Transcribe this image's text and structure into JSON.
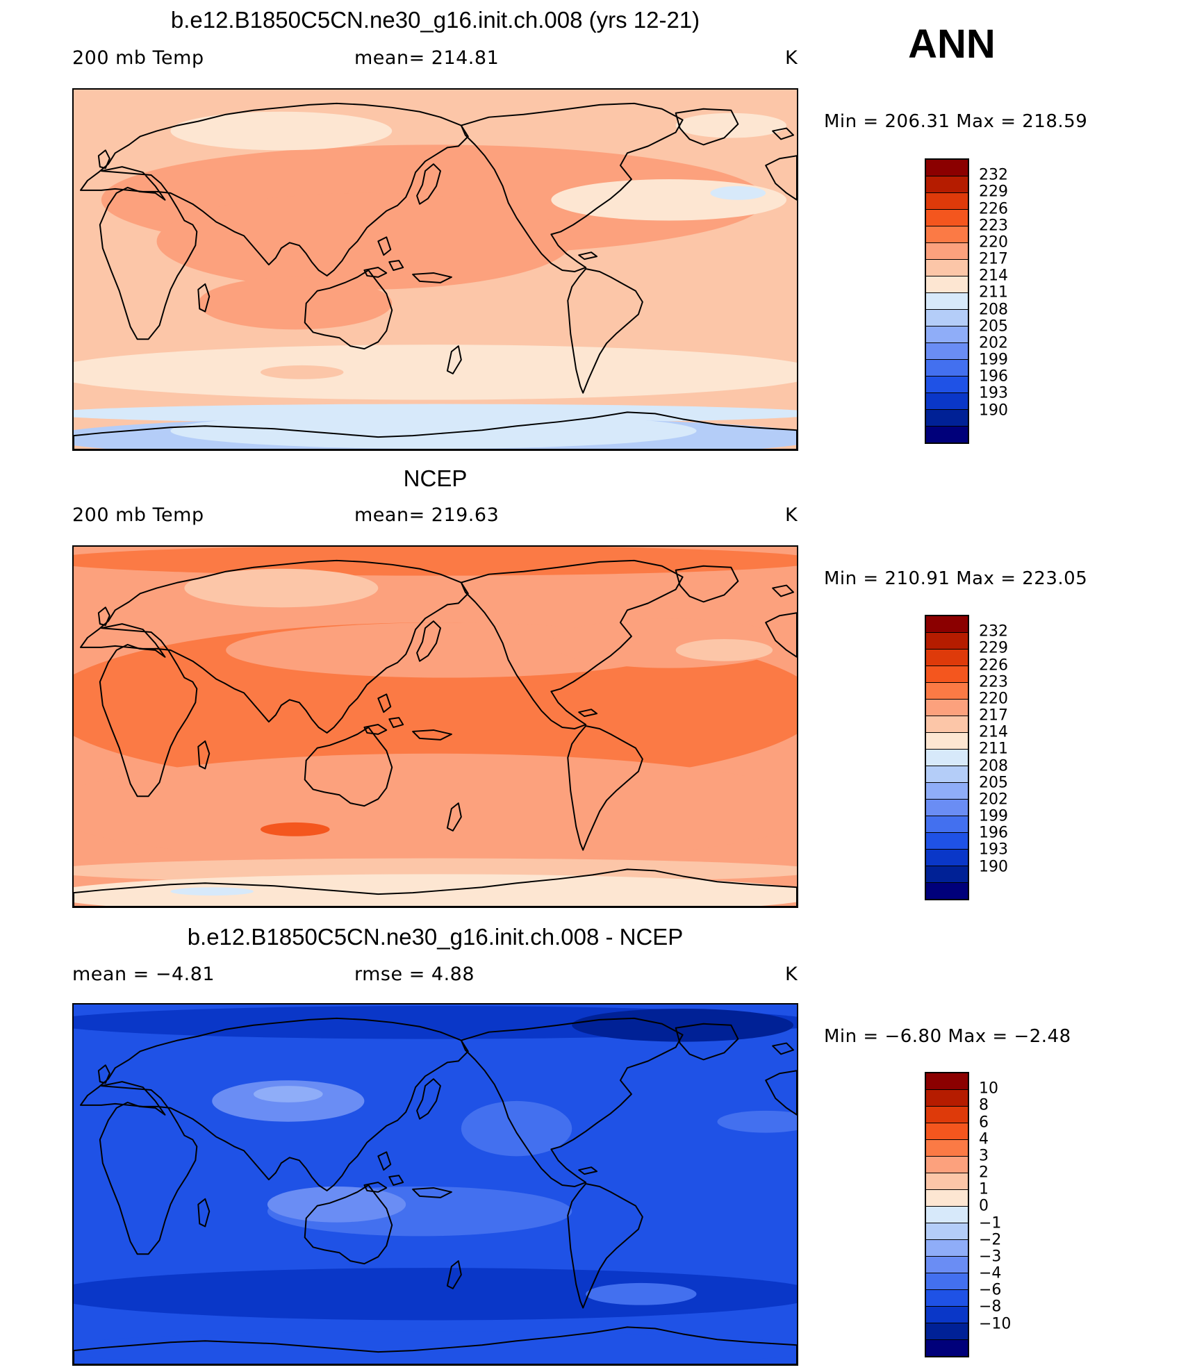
{
  "season": "ANN",
  "palette": {
    "ocean_line": "#000000",
    "colors": [
      "#8b0000",
      "#b51c00",
      "#de3a0a",
      "#f4561e",
      "#fb7a45",
      "#fca17d",
      "#fcc6a8",
      "#fde6d2",
      "#d7e9fa",
      "#b4cdf8",
      "#8fadf8",
      "#6a8df4",
      "#4370ef",
      "#1f52e6",
      "#0a37c8",
      "#002196",
      "#00007a"
    ]
  },
  "panels": [
    {
      "id": "model",
      "title": "b.e12.B1850C5CN.ne30_g16.init.ch.008 (yrs 12-21)",
      "left_label": "200 mb Temp",
      "center_label": "mean=  214.81",
      "units": "K",
      "minmax": "Min  =  206.31  Max  =  218.59",
      "contour_levels": [
        "232",
        "229",
        "226",
        "223",
        "220",
        "217",
        "214",
        "211",
        "208",
        "205",
        "202",
        "199",
        "196",
        "193",
        "190"
      ],
      "bg_level": 6
    },
    {
      "id": "obs",
      "title": "NCEP",
      "left_label": "200 mb Temp",
      "center_label": "mean=  219.63",
      "units": "K",
      "minmax": "Min  =  210.91  Max  =  223.05",
      "contour_levels": [
        "232",
        "229",
        "226",
        "223",
        "220",
        "217",
        "214",
        "211",
        "208",
        "205",
        "202",
        "199",
        "196",
        "193",
        "190"
      ],
      "bg_level": 5
    },
    {
      "id": "diff",
      "title": "b.e12.B1850C5CN.ne30_g16.init.ch.008 - NCEP",
      "left_label": "mean =    −4.81",
      "center_label": "rmse =     4.88",
      "units": "K",
      "minmax": "Min  =    −6.80  Max  =    −2.48",
      "contour_levels": [
        "10",
        "8",
        "6",
        "4",
        "3",
        "2",
        "1",
        "0",
        "−1",
        "−2",
        "−3",
        "−4",
        "−6",
        "−8",
        "−10"
      ],
      "bg_level": 13
    }
  ]
}
